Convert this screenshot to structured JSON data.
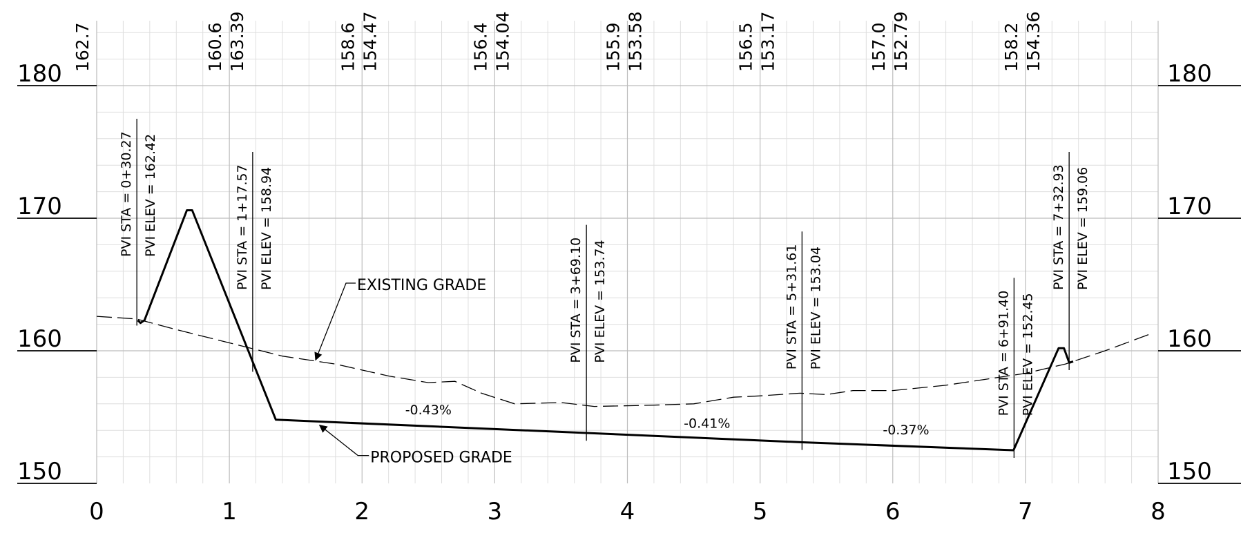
{
  "chart_data": {
    "type": "line",
    "title": "",
    "xlabel": "",
    "ylabel": "",
    "xlim": [
      0,
      8
    ],
    "ylim": [
      150,
      185
    ],
    "grid": true,
    "x_ticks": [
      "0",
      "1",
      "2",
      "3",
      "4",
      "5",
      "6",
      "7",
      "8"
    ],
    "y_ticks": [
      "150",
      "160",
      "170",
      "180"
    ],
    "top_values": [
      {
        "x": 0,
        "existing": "162.7",
        "proposed": ""
      },
      {
        "x": 1,
        "existing": "160.6",
        "proposed": "163.39"
      },
      {
        "x": 2,
        "existing": "158.6",
        "proposed": "154.47"
      },
      {
        "x": 3,
        "existing": "156.4",
        "proposed": "154.04"
      },
      {
        "x": 4,
        "existing": "155.9",
        "proposed": "153.58"
      },
      {
        "x": 5,
        "existing": "156.5",
        "proposed": "153.17"
      },
      {
        "x": 6,
        "existing": "157.0",
        "proposed": "152.79"
      },
      {
        "x": 7,
        "existing": "158.2",
        "proposed": "154.36"
      }
    ],
    "series": [
      {
        "name": "EXISTING GRADE",
        "style": "dashed",
        "points": [
          [
            0,
            162.6
          ],
          [
            0.3,
            162.4
          ],
          [
            0.6,
            161.6
          ],
          [
            1,
            160.6
          ],
          [
            1.4,
            159.6
          ],
          [
            1.8,
            159.0
          ],
          [
            2.2,
            158.1
          ],
          [
            2.5,
            157.6
          ],
          [
            2.7,
            157.7
          ],
          [
            2.9,
            156.8
          ],
          [
            3.15,
            156.0
          ],
          [
            3.5,
            156.1
          ],
          [
            3.75,
            155.8
          ],
          [
            4.2,
            155.9
          ],
          [
            4.5,
            156.0
          ],
          [
            4.8,
            156.5
          ],
          [
            5.0,
            156.6
          ],
          [
            5.3,
            156.8
          ],
          [
            5.5,
            156.7
          ],
          [
            5.7,
            157.0
          ],
          [
            6.0,
            157.0
          ],
          [
            6.4,
            157.4
          ],
          [
            6.8,
            158.0
          ],
          [
            7.0,
            158.3
          ],
          [
            7.3,
            159.0
          ],
          [
            7.6,
            160.0
          ],
          [
            7.95,
            161.3
          ]
        ]
      },
      {
        "name": "PROPOSED GRADE",
        "style": "solid",
        "points": [
          [
            0.31,
            162.3
          ],
          [
            0.33,
            162.1
          ],
          [
            0.36,
            162.3
          ],
          [
            0.68,
            170.6
          ],
          [
            0.72,
            170.6
          ],
          [
            1.35,
            154.8
          ],
          [
            3.69,
            153.8
          ],
          [
            5.32,
            153.1
          ],
          [
            6.91,
            152.5
          ],
          [
            7.25,
            160.2
          ],
          [
            7.29,
            160.2
          ],
          [
            7.33,
            159.1
          ],
          [
            7.36,
            159.2
          ]
        ]
      }
    ],
    "grade_labels": [
      {
        "x": 2.5,
        "y": 155.2,
        "text": "-0.43%"
      },
      {
        "x": 4.6,
        "y": 154.2,
        "text": "-0.41%"
      },
      {
        "x": 6.1,
        "y": 153.7,
        "text": "-0.37%"
      }
    ],
    "callouts": [
      {
        "text": "EXISTING GRADE",
        "x": 1.9,
        "y": 165.0
      },
      {
        "text": "PROPOSED GRADE",
        "x": 2.0,
        "y": 152.0
      }
    ],
    "pvi": [
      {
        "sta_label": "PVI STA = 0+30.27",
        "elev_label": "PVI ELEV =  162.42",
        "x": 0.3027,
        "y": 162.42,
        "top": 177.5
      },
      {
        "sta_label": "PVI STA = 1+17.57",
        "elev_label": "PVI ELEV =  158.94",
        "x": 1.1757,
        "y": 158.94,
        "top": 175.0
      },
      {
        "sta_label": "PVI STA = 3+69.10",
        "elev_label": "PVI ELEV =  153.74",
        "x": 3.691,
        "y": 153.74,
        "top": 169.5
      },
      {
        "sta_label": "PVI STA = 5+31.61",
        "elev_label": "PVI ELEV =  153.04",
        "x": 5.3161,
        "y": 153.04,
        "top": 169.0
      },
      {
        "sta_label": "PVI STA = 6+91.40",
        "elev_label": "PVI ELEV =  152.45",
        "x": 6.914,
        "y": 152.45,
        "top": 165.5
      },
      {
        "sta_label": "PVI STA = 7+32.93",
        "elev_label": "PVI ELEV =  159.06",
        "x": 7.3293,
        "y": 159.06,
        "top": 175.0
      }
    ]
  }
}
